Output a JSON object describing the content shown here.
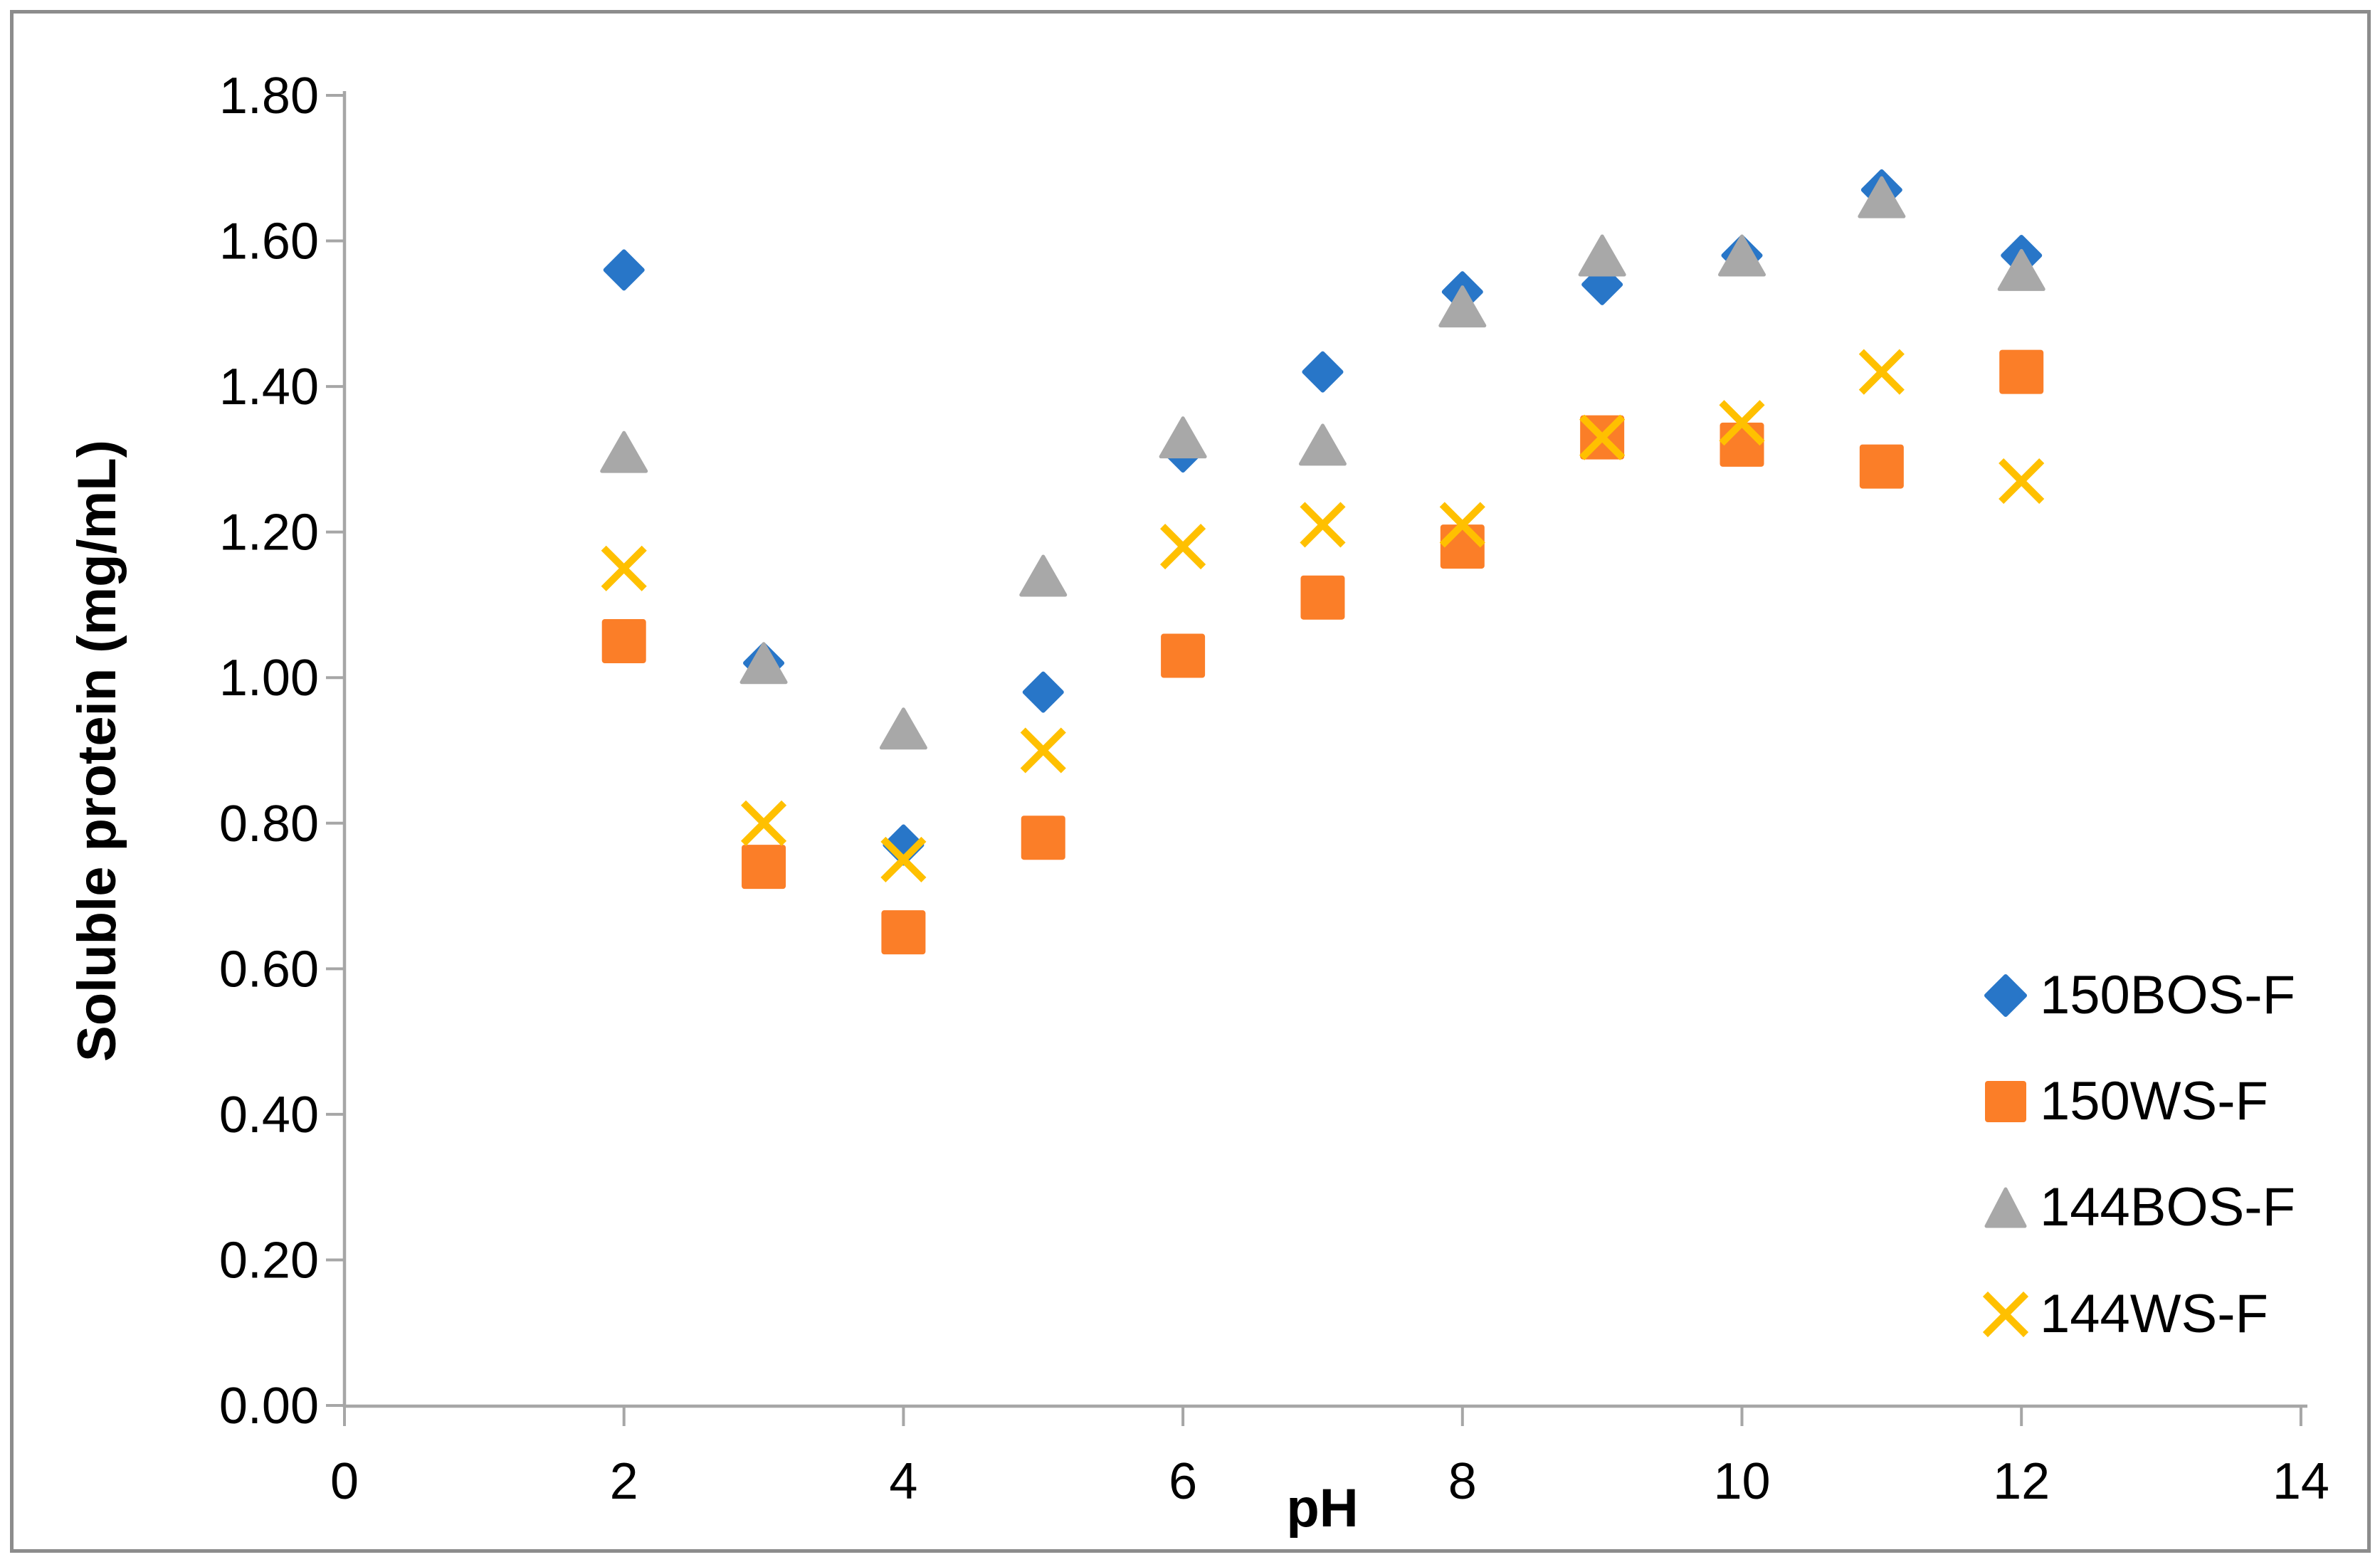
{
  "chart_data": {
    "type": "scatter",
    "title": "",
    "xlabel": "pH",
    "ylabel": "Soluble protein (mg/mL)",
    "xlim": [
      0,
      14
    ],
    "ylim": [
      0.0,
      1.8
    ],
    "x_ticks": [
      "0",
      "2",
      "4",
      "6",
      "8",
      "10",
      "12",
      "14"
    ],
    "y_ticks": [
      "0.00",
      "0.20",
      "0.40",
      "0.60",
      "0.80",
      "1.00",
      "1.20",
      "1.40",
      "1.60",
      "1.80"
    ],
    "grid": false,
    "legend_position": "right",
    "x": [
      2,
      3,
      4,
      5,
      6,
      7,
      8,
      9,
      10,
      11,
      12
    ],
    "series": [
      {
        "name": "150BOS-F",
        "marker": "diamond",
        "color": "#2876C8",
        "values": [
          1.56,
          1.02,
          0.77,
          0.98,
          1.31,
          1.42,
          1.53,
          1.54,
          1.58,
          1.67,
          1.58
        ]
      },
      {
        "name": "150WS-F",
        "marker": "square",
        "color": "#FB7E28",
        "values": [
          1.05,
          0.74,
          0.65,
          0.78,
          1.03,
          1.11,
          1.18,
          1.33,
          1.32,
          1.29,
          1.42
        ]
      },
      {
        "name": "144BOS-F",
        "marker": "triangle",
        "color": "#A8A8A8",
        "values": [
          1.31,
          1.02,
          0.93,
          1.14,
          1.33,
          1.32,
          1.51,
          1.58,
          1.58,
          1.66,
          1.56
        ]
      },
      {
        "name": "144WS-F",
        "marker": "x",
        "color": "#FFC000",
        "values": [
          1.15,
          0.8,
          0.75,
          0.9,
          1.18,
          1.21,
          1.21,
          1.33,
          1.35,
          1.42,
          1.27
        ]
      }
    ],
    "axis_color": "#A6A6A6",
    "text_color": "#000000",
    "border_color": "#8C8C8C"
  }
}
